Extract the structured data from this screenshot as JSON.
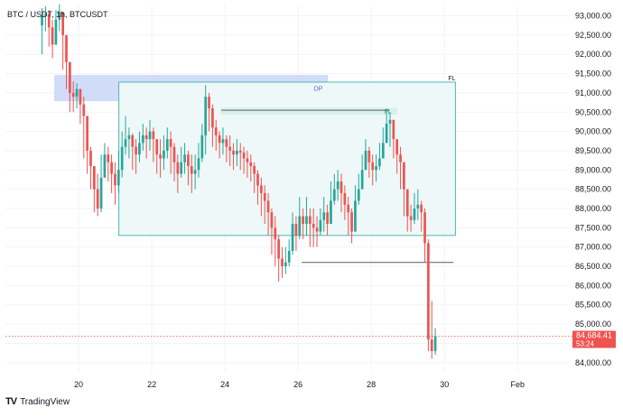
{
  "chart_data": {
    "type": "candlestick",
    "title": "BTC / USDT, 1h, BTCUSDT",
    "y_ticks": [
      "93,000.00",
      "92,500.00",
      "92,000.00",
      "91,500.00",
      "91,000.00",
      "90,500.00",
      "90,000.00",
      "89,500.00",
      "89,000.00",
      "88,500.00",
      "88,000.00",
      "87,500.00",
      "87,000.00",
      "86,500.00",
      "86,000.00",
      "85,500.00",
      "85,000.00",
      "84,500.00",
      "84,000.00"
    ],
    "y_tick_values": [
      93000,
      92500,
      92000,
      91500,
      91000,
      90500,
      90000,
      89500,
      89000,
      88500,
      88000,
      87500,
      87000,
      86500,
      86000,
      85500,
      85000,
      84500,
      84000
    ],
    "ylim": [
      83760,
      93270
    ],
    "x_ticks": [
      "20",
      "22",
      "24",
      "26",
      "28",
      "30",
      "Feb"
    ],
    "x_tick_values": [
      20,
      22,
      24,
      26,
      28,
      30,
      32
    ],
    "xlim": [
      18.0,
      33.4
    ],
    "colors": {
      "up": "#26a69a",
      "down": "#ef5350",
      "grid": "#f0f3fa",
      "axis_text": "#131722"
    },
    "close": [
      93000,
      93050,
      92700,
      92250,
      92900,
      93100,
      92500,
      91800,
      91000,
      90900,
      91100,
      90700,
      90400,
      89500,
      89100,
      88500,
      88000,
      88800,
      89400,
      89200,
      88900,
      88600,
      89000,
      89600,
      89800,
      89900,
      89600,
      89400,
      89700,
      89900,
      89800,
      90000,
      89800,
      89400,
      89300,
      89500,
      89800,
      89600,
      89200,
      88900,
      89200,
      89400,
      89100,
      88900,
      89000,
      89300,
      89900,
      90900,
      90600,
      90100,
      89900,
      89700,
      89800,
      89600,
      89500,
      89400,
      89500,
      89450,
      89300,
      89200,
      89100,
      88900,
      88600,
      88400,
      88200,
      87900,
      87500,
      87200,
      86700,
      86500,
      86600,
      86900,
      87600,
      87300,
      87800,
      87600,
      87800,
      87600,
      87500,
      87400,
      87700,
      87900,
      87600,
      88200,
      88500,
      88700,
      88400,
      88100,
      87900,
      87400,
      88200,
      88500,
      89000,
      89500,
      89200,
      89000,
      89100,
      89300,
      89700,
      90200,
      90300,
      89800,
      89400,
      89200,
      88500,
      87800,
      87700,
      88000,
      88100,
      87900,
      87100,
      84600,
      84300,
      84684.41
    ],
    "highs": [
      93200,
      93250,
      93150,
      92900,
      93150,
      93300,
      93000,
      92300,
      91500,
      91300,
      91250,
      91050,
      90900,
      90000,
      89600,
      89000,
      88900,
      89400,
      89700,
      89600,
      89400,
      89200,
      89500,
      90000,
      90400,
      90100,
      89950,
      89800,
      90000,
      90200,
      90100,
      90300,
      90100,
      89800,
      89800,
      89900,
      90100,
      90000,
      89700,
      89400,
      89600,
      89700,
      89500,
      89400,
      89400,
      89700,
      90200,
      91200,
      91000,
      90700,
      90300,
      90000,
      90100,
      89900,
      89900,
      89700,
      89800,
      89700,
      89600,
      89500,
      89400,
      89200,
      89000,
      88800,
      88600,
      88400,
      88000,
      87800,
      87300,
      87000,
      87000,
      87200,
      87900,
      87800,
      88300,
      88000,
      88300,
      88000,
      88000,
      87800,
      88000,
      88300,
      88100,
      88700,
      88900,
      89000,
      88900,
      88600,
      88300,
      88000,
      88600,
      88900,
      89400,
      89800,
      89600,
      89400,
      89400,
      89700,
      90100,
      90600,
      90500,
      90200,
      89800,
      89600,
      89200,
      88400,
      88100,
      88400,
      88500,
      88200,
      88000,
      87200,
      85600,
      84900
    ],
    "lows": [
      92000,
      92600,
      92200,
      91900,
      92300,
      92600,
      91600,
      91100,
      90500,
      90500,
      90600,
      90200,
      89300,
      88900,
      88500,
      87900,
      87800,
      87900,
      88800,
      88700,
      88400,
      88100,
      88400,
      88800,
      89400,
      89300,
      89000,
      88900,
      89200,
      89500,
      89300,
      89500,
      89200,
      88900,
      88800,
      89000,
      89300,
      88900,
      88700,
      88400,
      88800,
      88900,
      88600,
      88400,
      88500,
      88800,
      89200,
      89400,
      90000,
      89600,
      89500,
      89300,
      89400,
      89200,
      89100,
      89000,
      89100,
      89000,
      88900,
      88800,
      88700,
      88400,
      88100,
      87800,
      87600,
      87300,
      86800,
      86500,
      86100,
      86200,
      86300,
      86500,
      86800,
      86900,
      87200,
      87200,
      87300,
      87000,
      87000,
      87000,
      87300,
      87400,
      87300,
      87600,
      88100,
      88200,
      87900,
      87700,
      87300,
      87100,
      87700,
      88100,
      88500,
      89000,
      88800,
      88600,
      88700,
      89000,
      89400,
      89700,
      89600,
      89300,
      88900,
      88500,
      87800,
      87400,
      87400,
      87600,
      87700,
      87400,
      86600,
      84300,
      84100,
      84200
    ],
    "open_first": 92750,
    "start_x": 19.0,
    "end_x": 29.75,
    "last_price": "84,684.41",
    "countdown": "53:24",
    "last_price_value": 84684.41,
    "zones": [
      {
        "label": "DP",
        "x0": 19.35,
        "x1": 26.8,
        "y0": 90800,
        "y1": 91450,
        "fill": "#c9d6f7",
        "stroke": "#c9d6f7",
        "text_color": "#4a6ad0"
      },
      {
        "label": "FL",
        "x0": 21.1,
        "x1": 30.3,
        "y0": 87300,
        "y1": 91280,
        "fill": "#eef8f8",
        "stroke": "#4fb6b6",
        "text_color": "#131722",
        "label_pos": "top-right-outside"
      },
      {
        "label": "FL",
        "x0": 23.9,
        "x1": 28.7,
        "y0": 90450,
        "y1": 90600,
        "fill": "#d7efe7",
        "stroke": "#d7efe7",
        "text_color": "#26a69a"
      }
    ],
    "lines": [
      {
        "x0": 23.9,
        "x1": 28.5,
        "y": 90550,
        "color": "#5a5e6b"
      },
      {
        "x0": 26.1,
        "x1": 30.25,
        "y": 86600,
        "color": "#5a5e6b"
      }
    ],
    "grid": true,
    "legend": "none"
  },
  "watermark": {
    "logo": "TV",
    "text": "TradingView"
  }
}
